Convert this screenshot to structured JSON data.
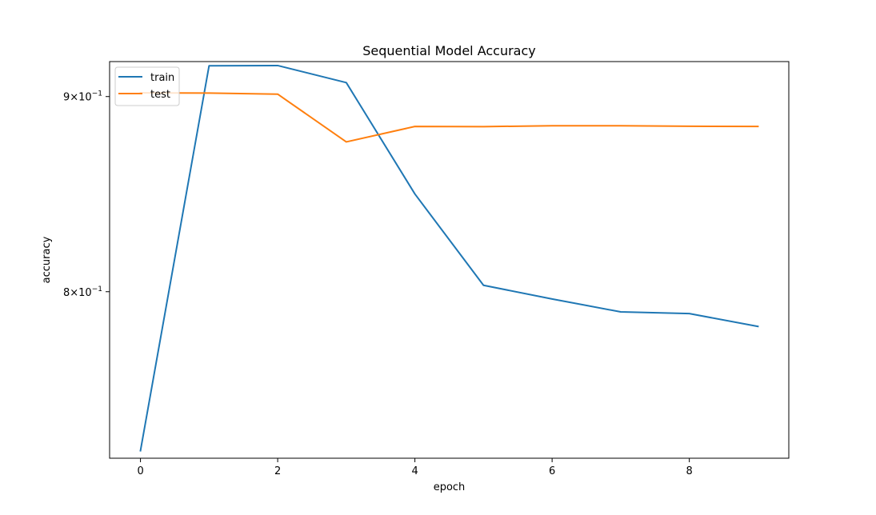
{
  "chart_data": {
    "type": "line",
    "title": "Sequential Model Accuracy",
    "xlabel": "epoch",
    "ylabel": "accuracy",
    "yscale": "log",
    "xlim": [
      -0.45,
      9.45
    ],
    "ylim": [
      0.7235,
      0.9192
    ],
    "grid": false,
    "legend_position": "top-left",
    "x_ticks": [
      0,
      2,
      4,
      6,
      8
    ],
    "x_tick_labels": [
      "0",
      "2",
      "4",
      "6",
      "8"
    ],
    "y_ticks": [
      {
        "value": 0.9,
        "mantissa": "9",
        "exponent": "−1"
      },
      {
        "value": 0.8,
        "mantissa": "8",
        "exponent": "−1"
      }
    ],
    "x": [
      0,
      1,
      2,
      3,
      4,
      5,
      6,
      7,
      8,
      9
    ],
    "series": [
      {
        "name": "train",
        "color": "#1f77b4",
        "values": [
          0.7268,
          0.9169,
          0.917,
          0.9076,
          0.8486,
          0.8031,
          0.7965,
          0.7903,
          0.7895,
          0.7834
        ]
      },
      {
        "name": "test",
        "color": "#ff7f0e",
        "values": [
          0.902,
          0.9019,
          0.9013,
          0.8757,
          0.8839,
          0.8838,
          0.8843,
          0.8843,
          0.884,
          0.8839
        ]
      }
    ]
  }
}
